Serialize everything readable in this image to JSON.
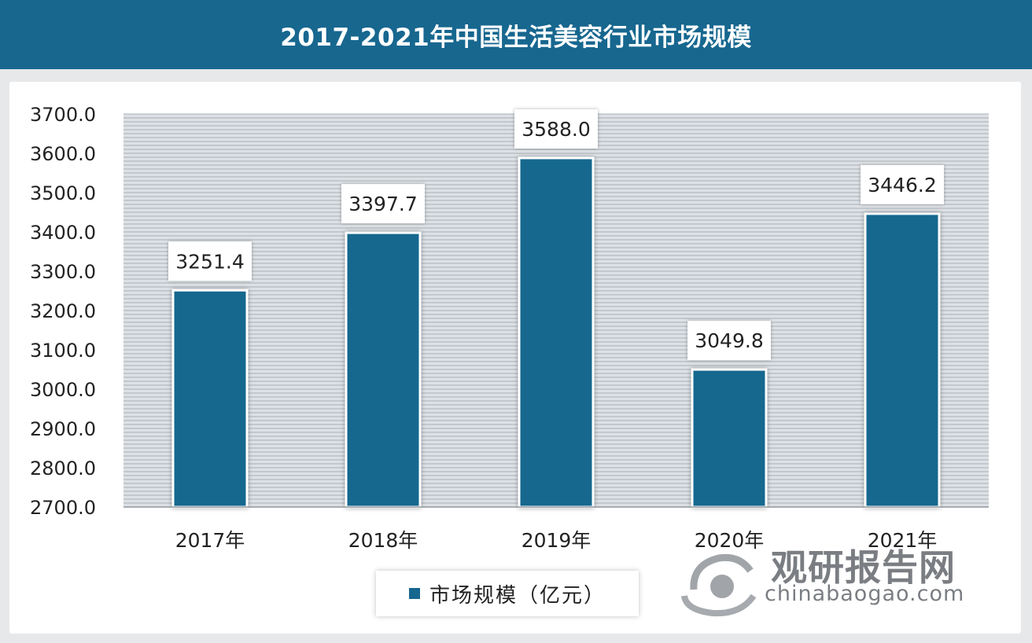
{
  "title": "2017-2021年中国生活美容行业市场规模",
  "chart_data": {
    "type": "bar",
    "categories": [
      "2017年",
      "2018年",
      "2019年",
      "2020年",
      "2021年"
    ],
    "series": [
      {
        "name": "市场规模（亿元）",
        "values": [
          3251.4,
          3397.7,
          3588.0,
          3049.8,
          3446.2
        ]
      }
    ],
    "data_labels": [
      "3251.4",
      "3397.7",
      "3588.0",
      "3049.8",
      "3446.2"
    ],
    "ylim": [
      2700,
      3700
    ],
    "yticks": [
      "3700.0",
      "3600.0",
      "3500.0",
      "3400.0",
      "3300.0",
      "3200.0",
      "3100.0",
      "3000.0",
      "2900.0",
      "2800.0",
      "2700.0"
    ],
    "ytick_values": [
      3700,
      3600,
      3500,
      3400,
      3300,
      3200,
      3100,
      3000,
      2900,
      2800,
      2700
    ],
    "grid": true,
    "legend_position": "bottom",
    "bar_color": "#17678f",
    "grid_color": "#a9b0b8"
  },
  "legend": {
    "label": "市场规模（亿元）"
  },
  "watermark": {
    "cn": "观研报告网",
    "en": "chinabaogao.com"
  }
}
